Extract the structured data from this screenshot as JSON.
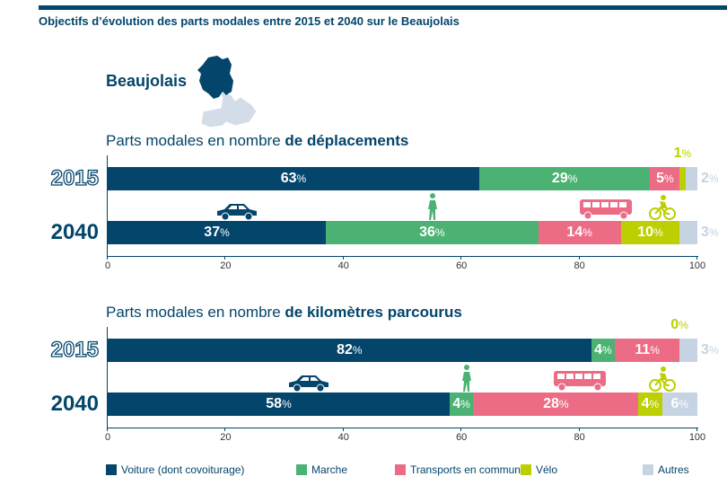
{
  "title": "Objectifs d’évolution des parts modales entre 2015 et 2040 sur le Beaujolais",
  "region": "Beaujolais",
  "colors": {
    "Voiture": "#03456b",
    "Marche": "#4bb273",
    "Transports en commun": "#ec6c85",
    "Vélo": "#bccf00",
    "Autres": "#c6d3e3"
  },
  "legend": [
    "Voiture (dont covoiturage)",
    "Marche",
    "Transports en commun",
    "Vélo",
    "Autres"
  ],
  "chart_data": [
    {
      "type": "bar",
      "orientation": "horizontal-stacked",
      "title_prefix": "Parts modales en nombre ",
      "title_bold": "de déplacements",
      "categories": [
        "2015",
        "2040"
      ],
      "xlim": [
        0,
        100
      ],
      "xticks": [
        "0",
        "20",
        "40",
        "60",
        "80",
        "100"
      ],
      "series": [
        {
          "name": "Voiture (dont covoiturage)",
          "values": [
            63,
            37
          ]
        },
        {
          "name": "Marche",
          "values": [
            29,
            36
          ]
        },
        {
          "name": "Transports en commun",
          "values": [
            5,
            14
          ]
        },
        {
          "name": "Vélo",
          "values": [
            1,
            10
          ]
        },
        {
          "name": "Autres",
          "values": [
            2,
            3
          ]
        }
      ]
    },
    {
      "type": "bar",
      "orientation": "horizontal-stacked",
      "title_prefix": "Parts modales en nombre ",
      "title_bold": "de kilomètres parcourus",
      "categories": [
        "2015",
        "2040"
      ],
      "xlim": [
        0,
        100
      ],
      "xticks": [
        "0",
        "20",
        "40",
        "60",
        "80",
        "100"
      ],
      "series": [
        {
          "name": "Voiture (dont covoiturage)",
          "values": [
            82,
            58
          ]
        },
        {
          "name": "Marche",
          "values": [
            4,
            4
          ]
        },
        {
          "name": "Transports en commun",
          "values": [
            11,
            28
          ]
        },
        {
          "name": "Vélo",
          "values": [
            0,
            4
          ]
        },
        {
          "name": "Autres",
          "values": [
            3,
            6
          ]
        }
      ]
    }
  ],
  "icons": [
    "car-icon",
    "pedestrian-icon",
    "bus-icon",
    "bicycle-icon"
  ]
}
